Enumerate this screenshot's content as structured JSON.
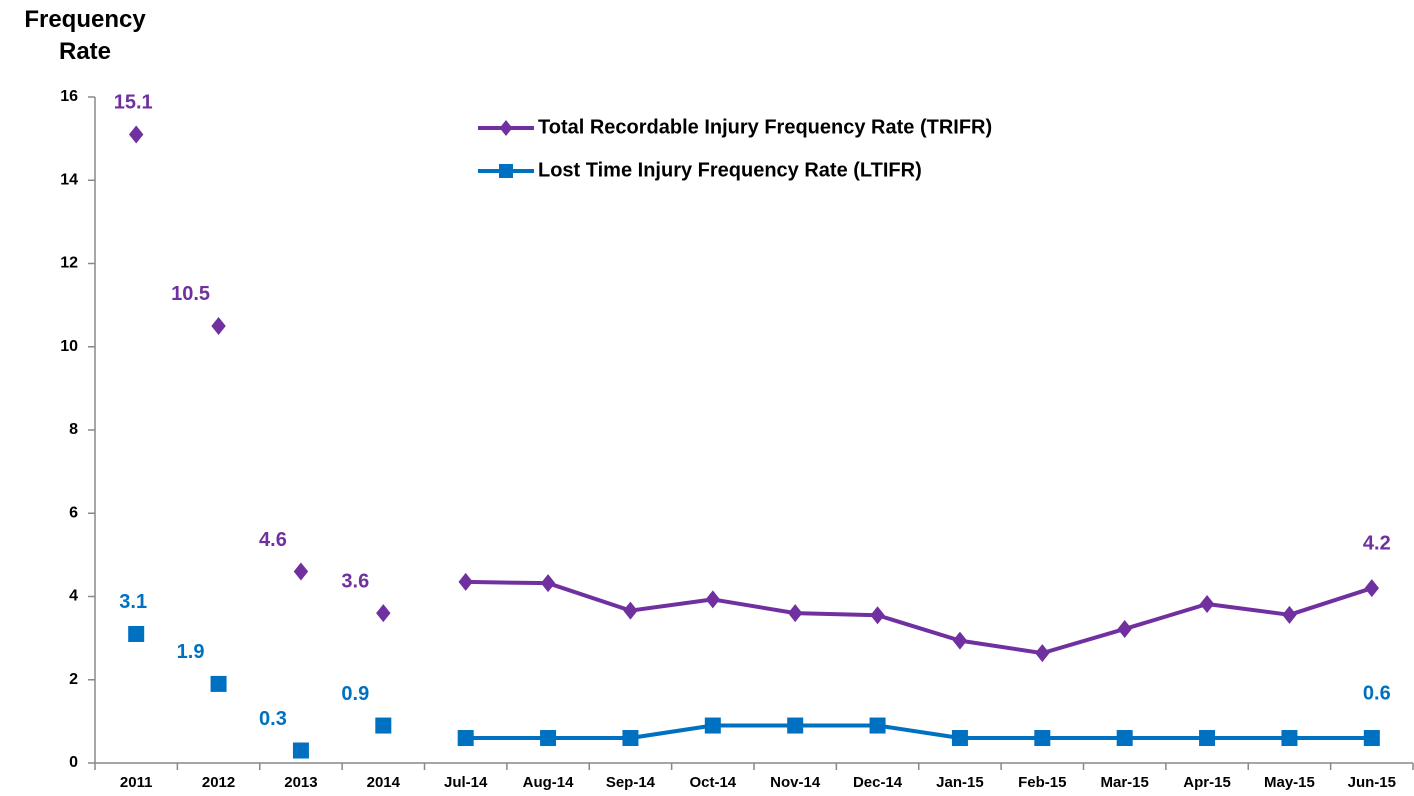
{
  "chart_data": {
    "type": "line",
    "y_axis_label": "Frequency Rate",
    "categories": [
      "2011",
      "2012",
      "2013",
      "2014",
      "Jul-14",
      "Aug-14",
      "Sep-14",
      "Oct-14",
      "Nov-14",
      "Dec-14",
      "Jan-15",
      "Feb-15",
      "Mar-15",
      "Apr-15",
      "May-15",
      "Jun-15"
    ],
    "line_start": "Jul-14",
    "series": [
      {
        "name": "Total Recordable Injury Frequency Rate (TRIFR)",
        "color": "#7030a0",
        "marker": "diamond",
        "values": [
          15.1,
          10.5,
          4.6,
          3.6,
          4.35,
          4.32,
          3.66,
          3.93,
          3.6,
          3.55,
          2.94,
          2.64,
          3.22,
          3.82,
          3.56,
          4.2
        ],
        "value_labels": [
          "15.1",
          "10.5",
          "4.6",
          "3.6",
          null,
          null,
          null,
          null,
          null,
          null,
          null,
          null,
          null,
          null,
          null,
          "4.2"
        ]
      },
      {
        "name": "Lost Time Injury Frequency Rate (LTIFR)",
        "color": "#0070c0",
        "marker": "square",
        "values": [
          3.1,
          1.9,
          0.3,
          0.9,
          0.6,
          0.6,
          0.6,
          0.9,
          0.9,
          0.9,
          0.6,
          0.6,
          0.6,
          0.6,
          0.6,
          0.6
        ],
        "value_labels": [
          "3.1",
          "1.9",
          "0.3",
          "0.9",
          null,
          null,
          null,
          null,
          null,
          null,
          null,
          null,
          null,
          null,
          null,
          "0.6"
        ]
      }
    ],
    "ylim": [
      0,
      16
    ],
    "yticks": [
      0,
      2,
      4,
      6,
      8,
      10,
      12,
      14,
      16
    ],
    "grid": false,
    "legend": "top"
  }
}
